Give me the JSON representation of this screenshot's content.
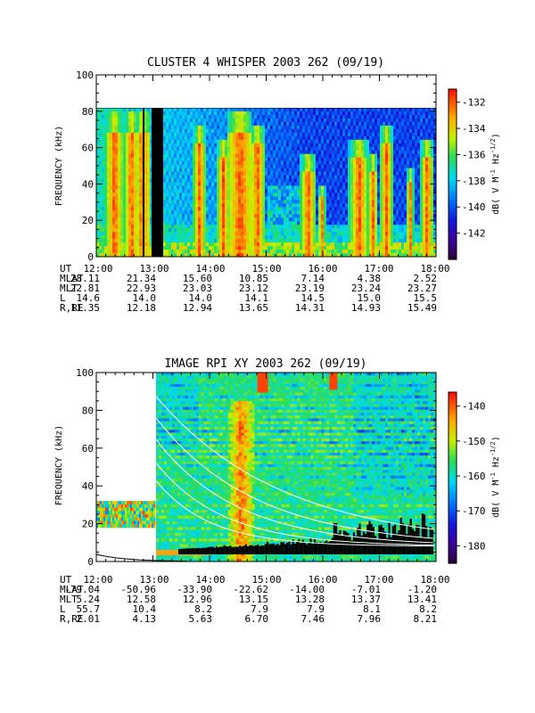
{
  "chart_data": [
    {
      "type": "heatmap",
      "title": "CLUSTER 4 WHISPER 2003 262 (09/19)",
      "ylabel": "FREQUENCY (kHz)",
      "ylim": [
        0,
        100
      ],
      "yticks": [
        "0",
        "20",
        "40",
        "60",
        "80",
        "100"
      ],
      "xticks": [
        "12:00",
        "13:00",
        "14:00",
        "15:00",
        "16:00",
        "17:00",
        "18:00"
      ],
      "xlim_hours": [
        12,
        18
      ],
      "data_freq_max_khz": 80,
      "colorbar": {
        "label": "dB( V M",
        "range": [
          -144,
          -131
        ],
        "ticks": [
          "-132",
          "-134",
          "-136",
          "-138",
          "-140",
          "-142"
        ],
        "tick_values": [
          -132,
          -134,
          -136,
          -138,
          -140,
          -142
        ]
      },
      "ephemeris": {
        "labels": [
          "UT",
          "MLAT",
          "MLT",
          "L",
          "R,RE"
        ],
        "UT": [
          "12:00",
          "13:00",
          "14:00",
          "15:00",
          "16:00",
          "17:00",
          "18:00"
        ],
        "MLAT": [
          "28.11",
          "21.34",
          "15.60",
          "10.85",
          "7.14",
          "4.38",
          "2.52"
        ],
        "MLT": [
          "22.81",
          "22.93",
          "23.03",
          "23.12",
          "23.19",
          "23.24",
          "23.27"
        ],
        "L": [
          "14.6",
          "14.0",
          "14.0",
          "14.1",
          "14.5",
          "15.0",
          "15.5"
        ],
        "R,RE": [
          "11.35",
          "12.18",
          "12.94",
          "13.65",
          "14.31",
          "14.93",
          "15.49"
        ]
      }
    },
    {
      "type": "heatmap",
      "title": "IMAGE RPI XY 2003 262 (09/19)",
      "ylabel": "FREQUENCY (kHz)",
      "ylim": [
        0,
        100
      ],
      "yticks": [
        "0",
        "20",
        "40",
        "60",
        "80",
        "100"
      ],
      "xticks": [
        "12:00",
        "13:00",
        "14:00",
        "15:00",
        "16:00",
        "17:00",
        "18:00"
      ],
      "xlim_hours": [
        12,
        18
      ],
      "colorbar": {
        "label": "dB( V M",
        "range": [
          -185,
          -136
        ],
        "ticks": [
          "-140",
          "-150",
          "-160",
          "-170",
          "-180"
        ],
        "tick_values": [
          -140,
          -150,
          -160,
          -170,
          -180
        ]
      },
      "ephemeris": {
        "labels": [
          "UT",
          "MLAT",
          "MLT",
          "L",
          "R,RE"
        ],
        "UT": [
          "12:00",
          "13:00",
          "14:00",
          "15:00",
          "16:00",
          "17:00",
          "18:00"
        ],
        "MLAT": [
          "-79.04",
          "-50.96",
          "-33.90",
          "-22.62",
          "-14.00",
          "-7.01",
          "-1.20"
        ],
        "MLT": [
          "5.24",
          "12.58",
          "12.96",
          "13.15",
          "13.28",
          "13.37",
          "13.41"
        ],
        "L": [
          "55.7",
          "10.4",
          "8.2",
          "7.9",
          "7.9",
          "8.1",
          "8.2"
        ],
        "R,RE": [
          "2.01",
          "4.13",
          "5.63",
          "6.70",
          "7.46",
          "7.96",
          "8.21"
        ]
      }
    }
  ],
  "colorbar_units": {
    "exp1": "-1",
    "mid": " Hz",
    "exp2": "-1/2",
    "end": ")"
  }
}
